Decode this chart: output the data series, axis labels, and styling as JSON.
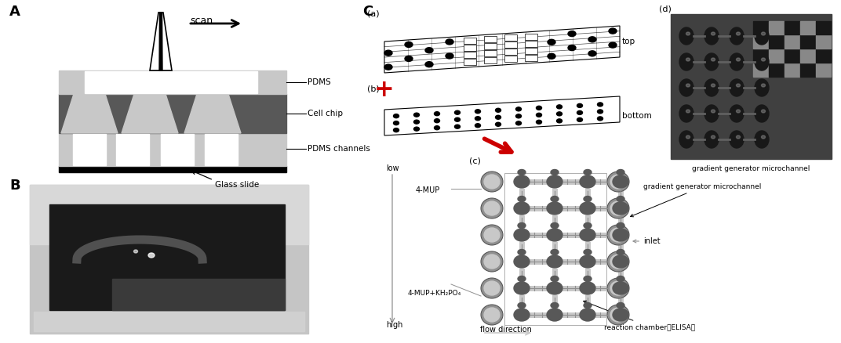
{
  "fig_width": 10.72,
  "fig_height": 4.38,
  "dpi": 100,
  "bg_color": "#ffffff",
  "label_A": "A",
  "label_B": "B",
  "label_C": "C",
  "label_a": "(a)",
  "label_b": "(b)",
  "label_c": "(c)",
  "label_d": "(d)",
  "text_scan": "scan",
  "text_PDMS": "PDMS",
  "text_cellchip": "Cell chip",
  "text_PDMS_channels": "PDMS channels",
  "text_glass": "Glass slide",
  "text_top": "top",
  "text_bottom": "bottom",
  "text_low": "low",
  "text_high": "high",
  "text_4MUP": "4-MUP",
  "text_4MUP2": "4-MUP+KH₂PO₄",
  "text_flow": "flow direction",
  "text_reaction": "reaction chamber（ELISA）",
  "text_gradient": "gradient generator microchannel",
  "text_inlet": "inlet",
  "gray_light": "#c8c8c8",
  "gray_mid": "#909090",
  "gray_dark": "#585858",
  "gray_vdark": "#282828",
  "gray_photo": "#b0b0b0",
  "red_arrow": "#cc0000"
}
